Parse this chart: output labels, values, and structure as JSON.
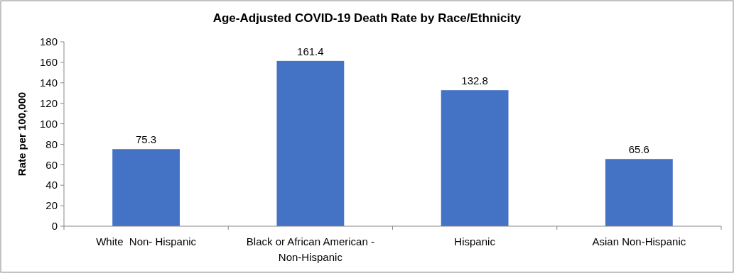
{
  "chart_data": {
    "type": "bar",
    "title": "Age-Adjusted COVID-19 Death Rate by Race/Ethnicity",
    "ylabel": "Rate per 100,000",
    "categories": [
      "White  Non- Hispanic",
      "Black or African American - Non-Hispanic",
      "Hispanic",
      "Asian Non-Hispanic"
    ],
    "values": [
      75.3,
      161.4,
      132.8,
      65.6
    ],
    "color": "#4472c4",
    "ylim": [
      0,
      180
    ],
    "yticks": [
      0,
      20,
      40,
      60,
      80,
      100,
      120,
      140,
      160,
      180
    ],
    "grid": false,
    "data_labels": true
  }
}
